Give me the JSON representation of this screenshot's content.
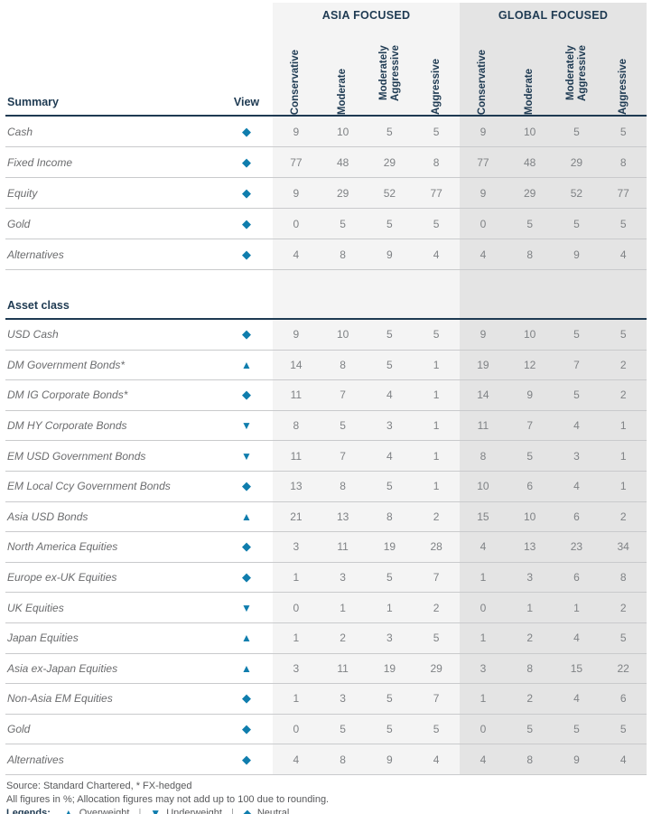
{
  "colors": {
    "navy": "#1e3a52",
    "icon_blue": "#0f7dad",
    "label_gray": "#6b6c6e",
    "number_gray": "#7f8285",
    "asia_bg": "#f4f4f4",
    "global_bg": "#e4e4e4"
  },
  "header": {
    "summary_label": "Summary",
    "view_label": "View",
    "asset_class_label": "Asset class",
    "groups": [
      {
        "key": "asia",
        "label": "ASIA FOCUSED"
      },
      {
        "key": "global",
        "label": "GLOBAL FOCUSED"
      }
    ],
    "profiles": [
      "Conservative",
      "Moderate",
      "Moderately Aggressive",
      "Aggressive"
    ]
  },
  "legend_glyphs": {
    "overweight": "▲",
    "underweight": "▼",
    "neutral": "◆"
  },
  "summary_rows": [
    {
      "label": "Cash",
      "view": "neutral",
      "asia": [
        9,
        10,
        5,
        5
      ],
      "global": [
        9,
        10,
        5,
        5
      ]
    },
    {
      "label": "Fixed Income",
      "view": "neutral",
      "asia": [
        77,
        48,
        29,
        8
      ],
      "global": [
        77,
        48,
        29,
        8
      ]
    },
    {
      "label": "Equity",
      "view": "neutral",
      "asia": [
        9,
        29,
        52,
        77
      ],
      "global": [
        9,
        29,
        52,
        77
      ]
    },
    {
      "label": "Gold",
      "view": "neutral",
      "asia": [
        0,
        5,
        5,
        5
      ],
      "global": [
        0,
        5,
        5,
        5
      ]
    },
    {
      "label": "Alternatives",
      "view": "neutral",
      "asia": [
        4,
        8,
        9,
        4
      ],
      "global": [
        4,
        8,
        9,
        4
      ]
    }
  ],
  "asset_rows": [
    {
      "label": "USD Cash",
      "view": "neutral",
      "asia": [
        9,
        10,
        5,
        5
      ],
      "global": [
        9,
        10,
        5,
        5
      ]
    },
    {
      "label": "DM Government Bonds*",
      "view": "overweight",
      "asia": [
        14,
        8,
        5,
        1
      ],
      "global": [
        19,
        12,
        7,
        2
      ]
    },
    {
      "label": "DM IG Corporate Bonds*",
      "view": "neutral",
      "asia": [
        11,
        7,
        4,
        1
      ],
      "global": [
        14,
        9,
        5,
        2
      ]
    },
    {
      "label": "DM HY Corporate Bonds",
      "view": "underweight",
      "asia": [
        8,
        5,
        3,
        1
      ],
      "global": [
        11,
        7,
        4,
        1
      ]
    },
    {
      "label": "EM USD Government Bonds",
      "view": "underweight",
      "asia": [
        11,
        7,
        4,
        1
      ],
      "global": [
        8,
        5,
        3,
        1
      ]
    },
    {
      "label": "EM Local Ccy Government Bonds",
      "view": "neutral",
      "asia": [
        13,
        8,
        5,
        1
      ],
      "global": [
        10,
        6,
        4,
        1
      ]
    },
    {
      "label": "Asia USD Bonds",
      "view": "overweight",
      "asia": [
        21,
        13,
        8,
        2
      ],
      "global": [
        15,
        10,
        6,
        2
      ]
    },
    {
      "label": "North America Equities",
      "view": "neutral",
      "asia": [
        3,
        11,
        19,
        28
      ],
      "global": [
        4,
        13,
        23,
        34
      ]
    },
    {
      "label": "Europe ex-UK Equities",
      "view": "neutral",
      "asia": [
        1,
        3,
        5,
        7
      ],
      "global": [
        1,
        3,
        6,
        8
      ]
    },
    {
      "label": "UK Equities",
      "view": "underweight",
      "asia": [
        0,
        1,
        1,
        2
      ],
      "global": [
        0,
        1,
        1,
        2
      ]
    },
    {
      "label": "Japan Equities",
      "view": "overweight",
      "asia": [
        1,
        2,
        3,
        5
      ],
      "global": [
        1,
        2,
        4,
        5
      ]
    },
    {
      "label": "Asia ex-Japan Equities",
      "view": "overweight",
      "asia": [
        3,
        11,
        19,
        29
      ],
      "global": [
        3,
        8,
        15,
        22
      ]
    },
    {
      "label": "Non-Asia EM Equities",
      "view": "neutral",
      "asia": [
        1,
        3,
        5,
        7
      ],
      "global": [
        1,
        2,
        4,
        6
      ]
    },
    {
      "label": "Gold",
      "view": "neutral",
      "asia": [
        0,
        5,
        5,
        5
      ],
      "global": [
        0,
        5,
        5,
        5
      ]
    },
    {
      "label": "Alternatives",
      "view": "neutral",
      "asia": [
        4,
        8,
        9,
        4
      ],
      "global": [
        4,
        8,
        9,
        4
      ]
    }
  ],
  "footer": {
    "source": "Source: Standard Chartered, * FX-hedged",
    "note": "All figures in %; Allocation figures may not add up to 100 due to rounding.",
    "legend_title": "Legends:",
    "legend_separator": "|",
    "legend_items": [
      {
        "icon": "overweight",
        "label": "Overweight"
      },
      {
        "icon": "underweight",
        "label": "Underweight"
      },
      {
        "icon": "neutral",
        "label": "Neutral"
      }
    ]
  }
}
